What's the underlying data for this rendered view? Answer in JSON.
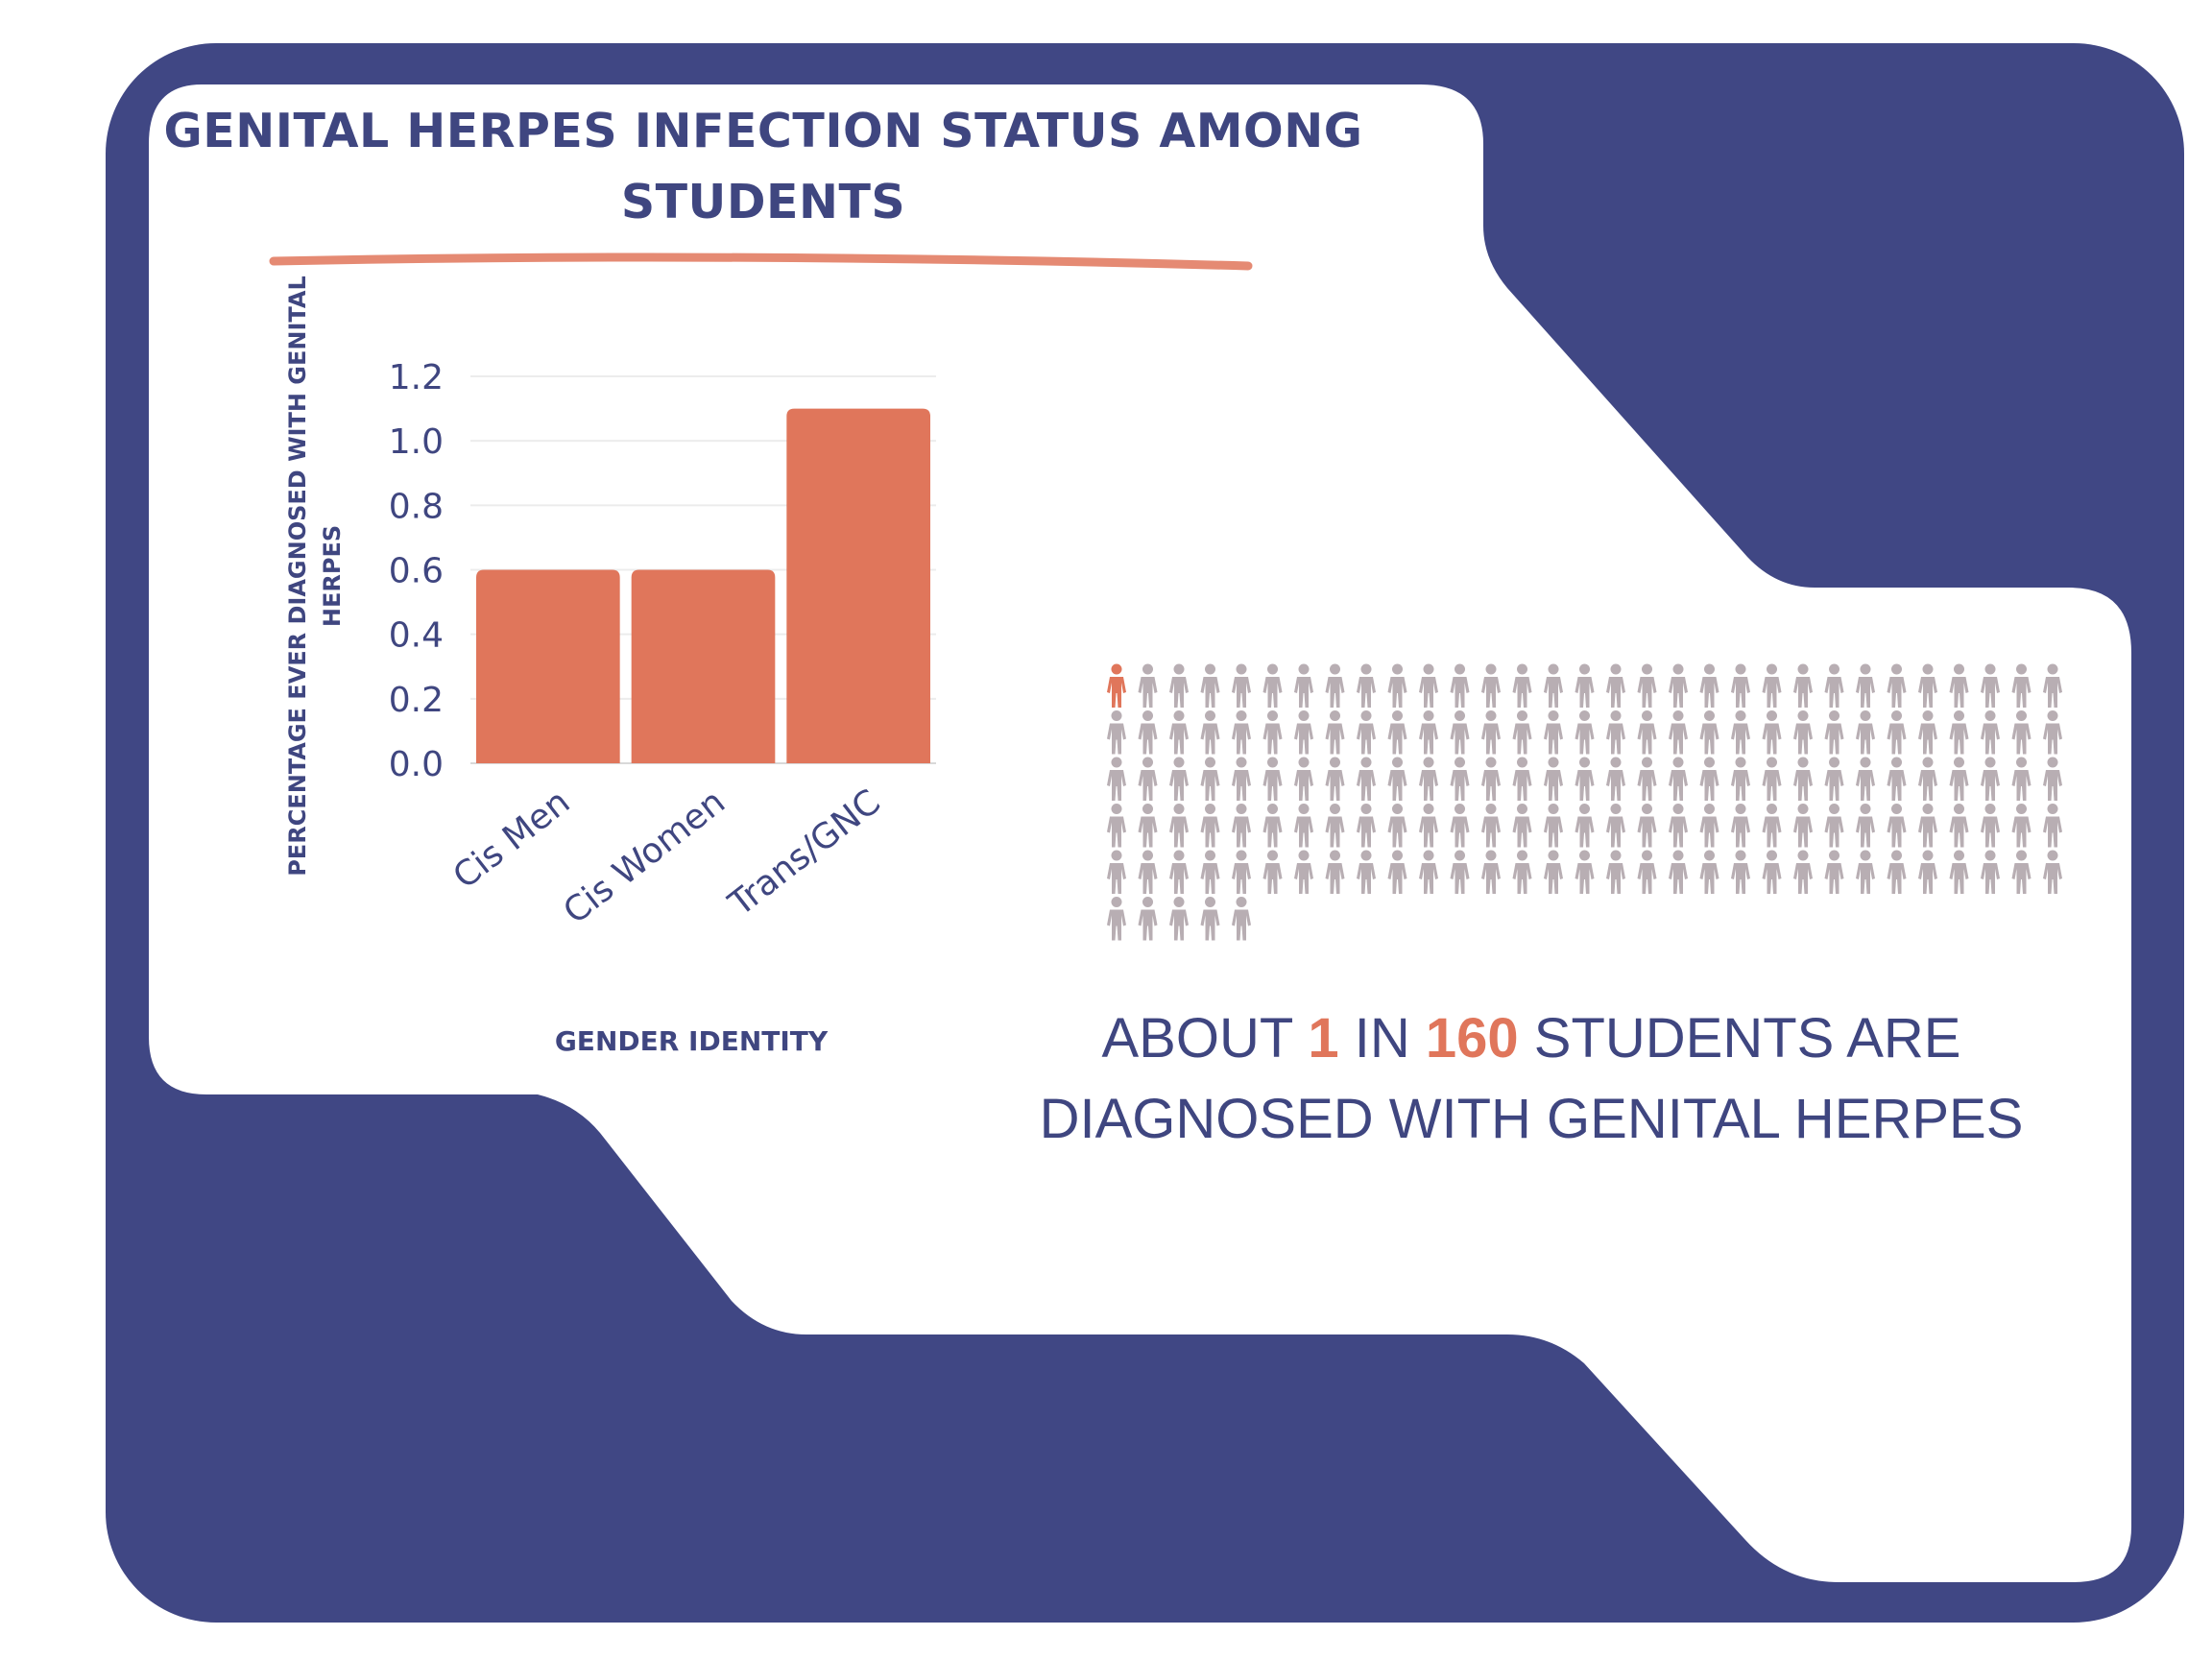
{
  "title": "GENITAL HERPES INFECTION STATUS AMONG STUDENTS",
  "colors": {
    "background": "#ffffff",
    "navy": "#404784",
    "accent": "#e0765b",
    "figure_gray": "#b8aeb3",
    "axis_text": "#3f4680"
  },
  "chart_data": {
    "type": "bar",
    "categories": [
      "Cis Men",
      "Cis Women",
      "Trans/GNC"
    ],
    "values": [
      0.6,
      0.6,
      1.1
    ],
    "xlabel": "GENDER IDENTITY",
    "ylabel": "PERCENTAGE EVER DIAGNOSED WITH GENITAL HERPES",
    "ylim": [
      0,
      1.2
    ],
    "yticks": [
      "0.0",
      "0.2",
      "0.4",
      "0.6",
      "0.8",
      "1.0",
      "1.2"
    ],
    "grid": true
  },
  "pictograph": {
    "total_figures": 160,
    "highlighted_figures": 1,
    "figures_per_row": 31,
    "headline_parts": [
      "ABOUT ",
      "1",
      " IN ",
      "160",
      " STUDENTS ARE DIAGNOSED WITH GENITAL HERPES"
    ]
  }
}
